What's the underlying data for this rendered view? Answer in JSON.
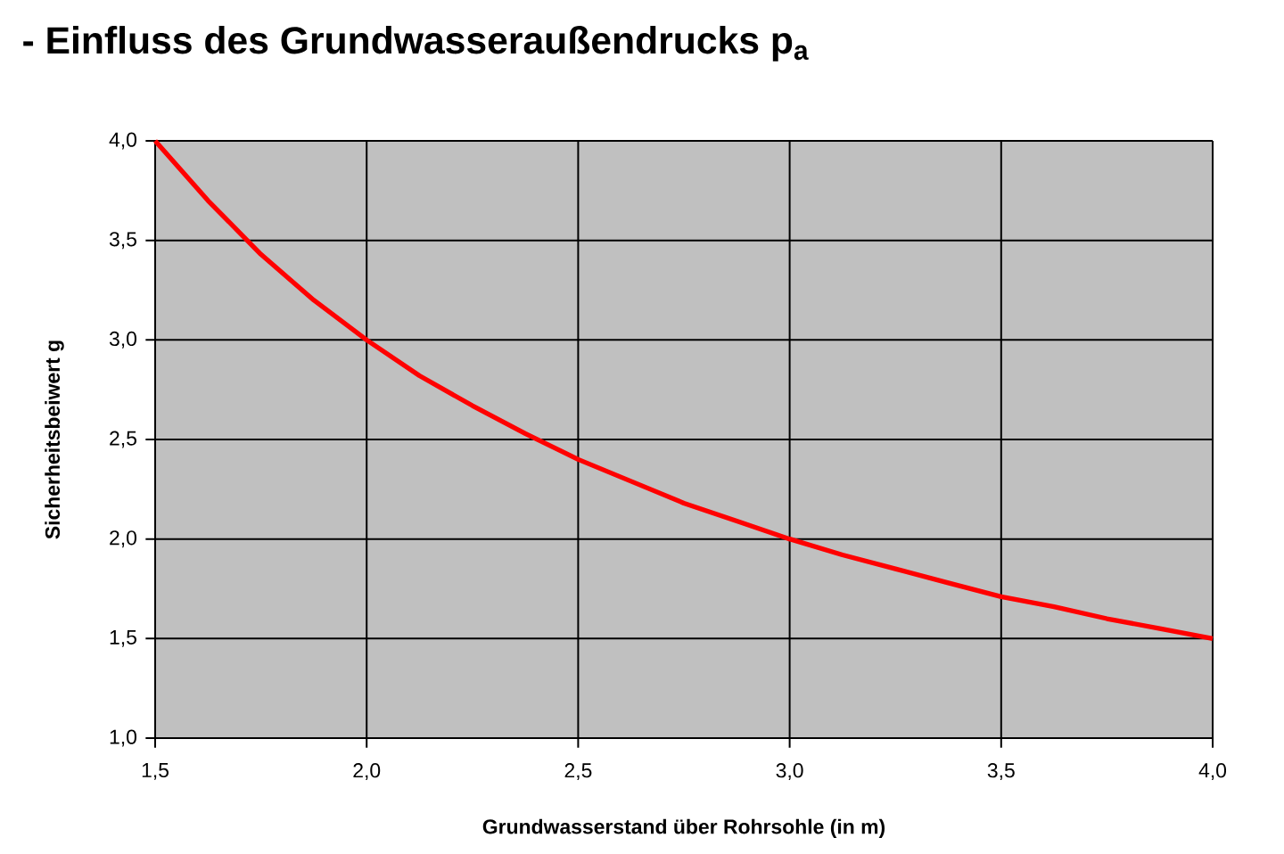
{
  "chart_data": {
    "type": "line",
    "title": "- Einfluss des Grundwasseraußendrucks p$_{a}$",
    "xlabel": "Grundwasserstand über Rohrsohle (in m)",
    "ylabel": "Sicherheitsbeiwert g",
    "x": [
      1.5,
      1.625,
      1.75,
      1.875,
      2.0,
      2.125,
      2.25,
      2.375,
      2.5,
      2.625,
      2.75,
      2.875,
      3.0,
      3.125,
      3.25,
      3.375,
      3.5,
      3.625,
      3.75,
      3.875,
      4.0
    ],
    "values": [
      4.0,
      3.7,
      3.43,
      3.2,
      3.0,
      2.82,
      2.67,
      2.53,
      2.4,
      2.29,
      2.18,
      2.09,
      2.0,
      1.92,
      1.85,
      1.78,
      1.71,
      1.66,
      1.6,
      1.55,
      1.5
    ],
    "color": "#ff0000",
    "xlim": [
      1.5,
      4.0
    ],
    "ylim": [
      1.0,
      4.0
    ],
    "xticks": [
      {
        "value": 1.5,
        "label": "1,5"
      },
      {
        "value": 2.0,
        "label": "2,0"
      },
      {
        "value": 2.5,
        "label": "2,5"
      },
      {
        "value": 3.0,
        "label": "3,0"
      },
      {
        "value": 3.5,
        "label": "3,5"
      },
      {
        "value": 4.0,
        "label": "4,0"
      }
    ],
    "yticks": [
      {
        "value": 1.0,
        "label": "1,0"
      },
      {
        "value": 1.5,
        "label": "1,5"
      },
      {
        "value": 2.0,
        "label": "2,0"
      },
      {
        "value": 2.5,
        "label": "2,5"
      },
      {
        "value": 3.0,
        "label": "3,0"
      },
      {
        "value": 3.5,
        "label": "3,5"
      },
      {
        "value": 4.0,
        "label": "4,0"
      }
    ],
    "grid": true,
    "marker": "none",
    "line_style": "solid"
  }
}
